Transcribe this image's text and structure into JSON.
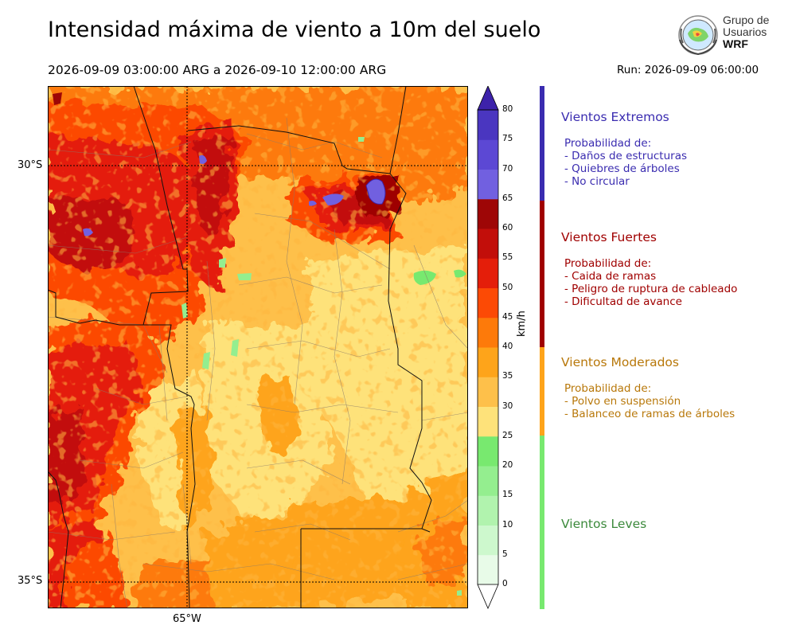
{
  "header": {
    "title": "Intensidad máxima de viento a 10m del suelo",
    "period": "2026-09-09 03:00:00 ARG  a  2026-09-10 12:00:00 ARG",
    "run": "Run: 2026-09-09 06:00:00"
  },
  "logo": {
    "line1": "Grupo de",
    "line2": "Usuarios",
    "line3": "WRF"
  },
  "map": {
    "lat_labels": [
      "30°S",
      "35°S"
    ],
    "lon_labels": [
      "65°W"
    ]
  },
  "colorbar": {
    "unit": "km/h",
    "levels": [
      0,
      5,
      10,
      15,
      20,
      25,
      30,
      35,
      40,
      45,
      50,
      55,
      60,
      65,
      70,
      75,
      80
    ],
    "colors": [
      "#e8fbe8",
      "#cdf8cd",
      "#b1f3ae",
      "#94ee8f",
      "#78e96f",
      "#fee27a",
      "#fec04a",
      "#fea41a",
      "#fd7a0a",
      "#fc4a05",
      "#e41e0a",
      "#c20e0a",
      "#9e0606",
      "#7160e0",
      "#5c48d4",
      "#4a36c0",
      "#3d22aa"
    ],
    "extend": "both"
  },
  "legend": [
    {
      "title": "Vientos Extremos",
      "color": "#3a2cb0",
      "lines": [
        "Probabilidad de:",
        "- Daños de estructuras",
        "- Quiebres de árboles",
        "- No circular"
      ]
    },
    {
      "title": "Vientos Fuertes",
      "color": "#a00000",
      "lines": [
        "Probabilidad de:",
        "- Caida de ramas",
        "- Peligro de ruptura de cableado",
        "- Dificultad de avance"
      ]
    },
    {
      "title": "Vientos Moderados",
      "color": "#b8780a",
      "lines": [
        "Probabilidad de:",
        "- Polvo en suspensión",
        "- Balanceo de ramas de árboles"
      ]
    },
    {
      "title": "Vientos Leves",
      "color": "#3c8a3c",
      "lines": []
    }
  ]
}
